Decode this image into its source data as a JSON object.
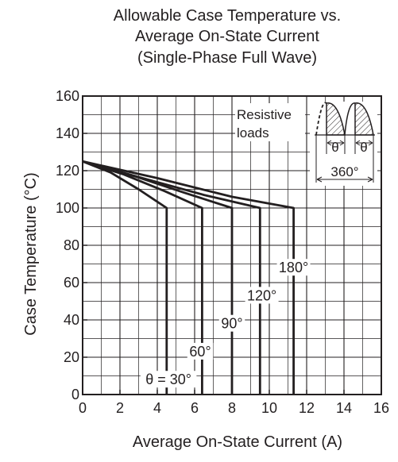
{
  "chart_data": {
    "type": "line",
    "title_lines": [
      "Allowable Case Temperature vs.",
      "Average On-State Current",
      "(Single-Phase Full Wave)"
    ],
    "xlabel": "Average On-State Current  (A)",
    "ylabel": "Case Temperature  (°C)",
    "xlim": [
      0,
      16
    ],
    "ylim": [
      0,
      160
    ],
    "x_ticks": [
      0,
      2,
      4,
      6,
      8,
      10,
      12,
      14,
      16
    ],
    "y_ticks": [
      0,
      20,
      40,
      60,
      80,
      100,
      120,
      140,
      160
    ],
    "grid": true,
    "series": [
      {
        "label": "θ = 30°",
        "points": [
          [
            0,
            125
          ],
          [
            1.5,
            119
          ],
          [
            3,
            110
          ],
          [
            4.5,
            100
          ],
          [
            4.5,
            0
          ]
        ]
      },
      {
        "label": "60°",
        "points": [
          [
            0,
            125
          ],
          [
            2.2,
            118
          ],
          [
            4.4,
            109
          ],
          [
            6.4,
            100
          ],
          [
            6.4,
            0
          ]
        ]
      },
      {
        "label": "90°",
        "points": [
          [
            0,
            125
          ],
          [
            2.8,
            117
          ],
          [
            5.5,
            108
          ],
          [
            8.0,
            100
          ],
          [
            8.0,
            0
          ]
        ]
      },
      {
        "label": "120°",
        "points": [
          [
            0,
            125
          ],
          [
            3.2,
            116
          ],
          [
            6.5,
            107
          ],
          [
            9.5,
            100
          ],
          [
            9.5,
            0
          ]
        ]
      },
      {
        "label": "180°",
        "points": [
          [
            0,
            125
          ],
          [
            4.0,
            116
          ],
          [
            8.0,
            106
          ],
          [
            11.3,
            100
          ],
          [
            11.3,
            0
          ]
        ]
      }
    ],
    "curve_labels": [
      {
        "text": "θ = 30°",
        "x": 4.6,
        "y": 8
      },
      {
        "text": "60°",
        "x": 6.3,
        "y": 23
      },
      {
        "text": "90°",
        "x": 8.0,
        "y": 38
      },
      {
        "text": "120°",
        "x": 9.6,
        "y": 53
      },
      {
        "text": "180°",
        "x": 11.3,
        "y": 68
      }
    ],
    "inset": {
      "text_lines": [
        "Resistive",
        "loads"
      ],
      "conduction_angle": "θ",
      "period": "360°"
    }
  }
}
